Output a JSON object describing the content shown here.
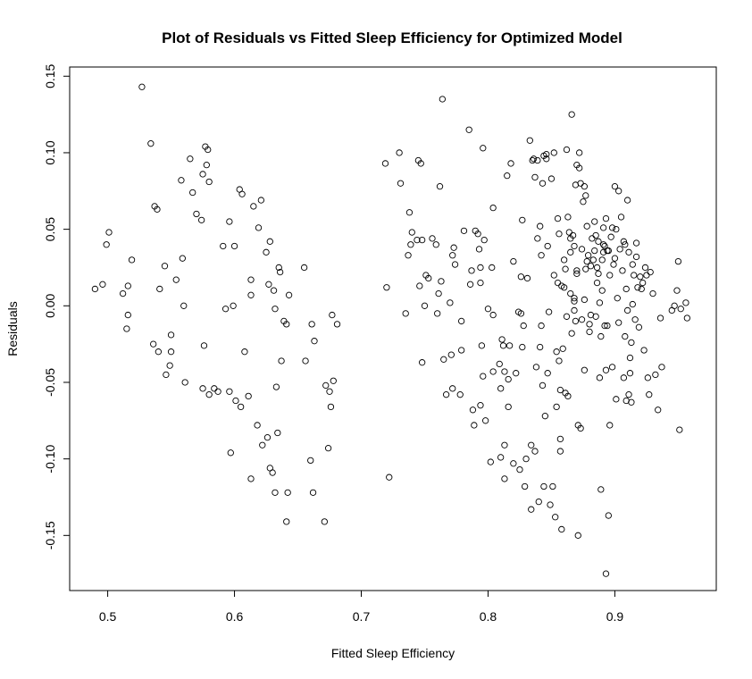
{
  "chart_data": {
    "type": "scatter",
    "title": "Plot of Residuals vs Fitted Sleep Efficiency for Optimized Model",
    "xlabel": "Fitted Sleep Efficiency",
    "ylabel": "Residuals",
    "xlim": [
      0.47,
      0.98
    ],
    "ylim": [
      -0.186,
      0.156
    ],
    "xticks": [
      0.5,
      0.6,
      0.7,
      0.8,
      0.9
    ],
    "xtick_labels": [
      "0.5",
      "0.6",
      "0.7",
      "0.8",
      "0.9"
    ],
    "yticks": [
      -0.15,
      -0.1,
      -0.05,
      0.0,
      0.05,
      0.1,
      0.15
    ],
    "ytick_labels": [
      "-0.15",
      "-0.10",
      "-0.05",
      "0.00",
      "0.05",
      "0.10",
      "0.15"
    ],
    "grid": false,
    "legend": "none",
    "points": [
      [
        0.49,
        0.011
      ],
      [
        0.496,
        0.014
      ],
      [
        0.499,
        0.04
      ],
      [
        0.501,
        0.048
      ],
      [
        0.512,
        0.008
      ],
      [
        0.515,
        -0.015
      ],
      [
        0.516,
        -0.006
      ],
      [
        0.516,
        0.013
      ],
      [
        0.519,
        0.03
      ],
      [
        0.527,
        0.143
      ],
      [
        0.534,
        0.106
      ],
      [
        0.536,
        -0.025
      ],
      [
        0.537,
        0.065
      ],
      [
        0.539,
        0.063
      ],
      [
        0.54,
        -0.03
      ],
      [
        0.541,
        0.011
      ],
      [
        0.545,
        0.026
      ],
      [
        0.546,
        -0.045
      ],
      [
        0.549,
        -0.039
      ],
      [
        0.55,
        -0.03
      ],
      [
        0.55,
        -0.019
      ],
      [
        0.554,
        0.017
      ],
      [
        0.558,
        0.082
      ],
      [
        0.559,
        0.031
      ],
      [
        0.56,
        0.0
      ],
      [
        0.561,
        -0.05
      ],
      [
        0.565,
        0.096
      ],
      [
        0.567,
        0.074
      ],
      [
        0.57,
        0.06
      ],
      [
        0.574,
        0.056
      ],
      [
        0.575,
        0.086
      ],
      [
        0.575,
        -0.054
      ],
      [
        0.576,
        -0.026
      ],
      [
        0.577,
        0.104
      ],
      [
        0.578,
        0.092
      ],
      [
        0.579,
        0.102
      ],
      [
        0.58,
        -0.058
      ],
      [
        0.58,
        0.081
      ],
      [
        0.584,
        -0.054
      ],
      [
        0.587,
        -0.056
      ],
      [
        0.591,
        0.039
      ],
      [
        0.593,
        -0.002
      ],
      [
        0.596,
        0.055
      ],
      [
        0.596,
        -0.056
      ],
      [
        0.597,
        -0.096
      ],
      [
        0.599,
        0.0
      ],
      [
        0.6,
        0.039
      ],
      [
        0.601,
        -0.062
      ],
      [
        0.604,
        0.076
      ],
      [
        0.605,
        -0.066
      ],
      [
        0.606,
        0.073
      ],
      [
        0.608,
        -0.03
      ],
      [
        0.611,
        -0.059
      ],
      [
        0.613,
        -0.113
      ],
      [
        0.613,
        0.007
      ],
      [
        0.613,
        0.017
      ],
      [
        0.615,
        0.065
      ],
      [
        0.618,
        -0.078
      ],
      [
        0.619,
        0.051
      ],
      [
        0.621,
        0.069
      ],
      [
        0.622,
        -0.091
      ],
      [
        0.625,
        0.035
      ],
      [
        0.626,
        -0.086
      ],
      [
        0.627,
        0.014
      ],
      [
        0.628,
        0.042
      ],
      [
        0.628,
        -0.106
      ],
      [
        0.63,
        -0.109
      ],
      [
        0.631,
        0.01
      ],
      [
        0.632,
        -0.002
      ],
      [
        0.632,
        -0.122
      ],
      [
        0.633,
        -0.053
      ],
      [
        0.634,
        -0.083
      ],
      [
        0.635,
        0.025
      ],
      [
        0.636,
        0.022
      ],
      [
        0.637,
        -0.036
      ],
      [
        0.639,
        -0.01
      ],
      [
        0.641,
        -0.012
      ],
      [
        0.641,
        -0.141
      ],
      [
        0.642,
        -0.122
      ],
      [
        0.643,
        0.007
      ],
      [
        0.655,
        0.025
      ],
      [
        0.656,
        -0.036
      ],
      [
        0.66,
        -0.101
      ],
      [
        0.661,
        -0.012
      ],
      [
        0.662,
        -0.122
      ],
      [
        0.663,
        -0.023
      ],
      [
        0.671,
        -0.141
      ],
      [
        0.672,
        -0.052
      ],
      [
        0.674,
        -0.093
      ],
      [
        0.675,
        -0.056
      ],
      [
        0.676,
        -0.066
      ],
      [
        0.677,
        -0.006
      ],
      [
        0.678,
        -0.049
      ],
      [
        0.681,
        -0.012
      ],
      [
        0.719,
        0.093
      ],
      [
        0.72,
        0.012
      ],
      [
        0.722,
        -0.112
      ],
      [
        0.73,
        0.1
      ],
      [
        0.731,
        0.08
      ],
      [
        0.735,
        -0.005
      ],
      [
        0.737,
        0.033
      ],
      [
        0.738,
        0.061
      ],
      [
        0.739,
        0.04
      ],
      [
        0.74,
        0.048
      ],
      [
        0.744,
        0.043
      ],
      [
        0.745,
        0.095
      ],
      [
        0.746,
        0.013
      ],
      [
        0.747,
        0.093
      ],
      [
        0.748,
        0.043
      ],
      [
        0.748,
        -0.037
      ],
      [
        0.75,
        0.0
      ],
      [
        0.751,
        0.02
      ],
      [
        0.753,
        0.018
      ],
      [
        0.756,
        0.044
      ],
      [
        0.759,
        0.04
      ],
      [
        0.76,
        -0.005
      ],
      [
        0.761,
        0.008
      ],
      [
        0.762,
        0.078
      ],
      [
        0.763,
        0.016
      ],
      [
        0.764,
        0.135
      ],
      [
        0.765,
        -0.035
      ],
      [
        0.767,
        -0.058
      ],
      [
        0.77,
        0.002
      ],
      [
        0.771,
        -0.032
      ],
      [
        0.772,
        0.033
      ],
      [
        0.772,
        -0.054
      ],
      [
        0.773,
        0.038
      ],
      [
        0.774,
        0.027
      ],
      [
        0.778,
        -0.058
      ],
      [
        0.779,
        -0.029
      ],
      [
        0.779,
        -0.01
      ],
      [
        0.781,
        0.049
      ],
      [
        0.785,
        0.115
      ],
      [
        0.786,
        0.014
      ],
      [
        0.787,
        0.023
      ],
      [
        0.788,
        -0.068
      ],
      [
        0.789,
        -0.078
      ],
      [
        0.79,
        0.049
      ],
      [
        0.792,
        0.047
      ],
      [
        0.793,
        0.037
      ],
      [
        0.794,
        0.025
      ],
      [
        0.794,
        -0.065
      ],
      [
        0.794,
        0.015
      ],
      [
        0.795,
        -0.026
      ],
      [
        0.796,
        -0.046
      ],
      [
        0.796,
        0.103
      ],
      [
        0.797,
        0.043
      ],
      [
        0.798,
        -0.075
      ],
      [
        0.8,
        -0.002
      ],
      [
        0.802,
        -0.102
      ],
      [
        0.803,
        0.025
      ],
      [
        0.804,
        -0.043
      ],
      [
        0.804,
        0.064
      ],
      [
        0.804,
        -0.006
      ],
      [
        0.809,
        -0.038
      ],
      [
        0.81,
        -0.054
      ],
      [
        0.81,
        -0.099
      ],
      [
        0.811,
        -0.022
      ],
      [
        0.812,
        -0.026
      ],
      [
        0.813,
        -0.113
      ],
      [
        0.813,
        -0.043
      ],
      [
        0.813,
        -0.091
      ],
      [
        0.815,
        0.085
      ],
      [
        0.816,
        -0.048
      ],
      [
        0.816,
        -0.066
      ],
      [
        0.817,
        -0.026
      ],
      [
        0.818,
        0.093
      ],
      [
        0.82,
        0.029
      ],
      [
        0.82,
        -0.103
      ],
      [
        0.822,
        -0.044
      ],
      [
        0.824,
        -0.004
      ],
      [
        0.825,
        -0.107
      ],
      [
        0.826,
        -0.005
      ],
      [
        0.826,
        0.019
      ],
      [
        0.827,
        0.056
      ],
      [
        0.827,
        -0.027
      ],
      [
        0.828,
        -0.013
      ],
      [
        0.829,
        -0.118
      ],
      [
        0.83,
        -0.1
      ],
      [
        0.831,
        0.018
      ],
      [
        0.833,
        0.108
      ],
      [
        0.834,
        -0.133
      ],
      [
        0.834,
        -0.091
      ],
      [
        0.835,
        0.095
      ],
      [
        0.836,
        0.096
      ],
      [
        0.837,
        -0.095
      ],
      [
        0.837,
        0.084
      ],
      [
        0.838,
        -0.04
      ],
      [
        0.839,
        0.095
      ],
      [
        0.839,
        0.044
      ],
      [
        0.84,
        -0.128
      ],
      [
        0.841,
        0.052
      ],
      [
        0.841,
        -0.027
      ],
      [
        0.842,
        0.033
      ],
      [
        0.842,
        -0.013
      ],
      [
        0.843,
        -0.052
      ],
      [
        0.843,
        0.08
      ],
      [
        0.844,
        0.098
      ],
      [
        0.844,
        -0.118
      ],
      [
        0.845,
        -0.072
      ],
      [
        0.846,
        0.099
      ],
      [
        0.846,
        0.096
      ],
      [
        0.847,
        0.039
      ],
      [
        0.847,
        -0.044
      ],
      [
        0.848,
        -0.004
      ],
      [
        0.849,
        -0.13
      ],
      [
        0.85,
        0.083
      ],
      [
        0.851,
        -0.118
      ],
      [
        0.852,
        0.02
      ],
      [
        0.852,
        0.1
      ],
      [
        0.853,
        -0.138
      ],
      [
        0.854,
        -0.03
      ],
      [
        0.854,
        -0.066
      ],
      [
        0.855,
        0.057
      ],
      [
        0.855,
        0.015
      ],
      [
        0.856,
        -0.036
      ],
      [
        0.856,
        0.047
      ],
      [
        0.857,
        -0.055
      ],
      [
        0.857,
        -0.087
      ],
      [
        0.857,
        -0.095
      ],
      [
        0.858,
        -0.146
      ],
      [
        0.858,
        0.013
      ],
      [
        0.859,
        -0.028
      ],
      [
        0.86,
        0.03
      ],
      [
        0.86,
        0.012
      ],
      [
        0.861,
        0.024
      ],
      [
        0.861,
        -0.057
      ],
      [
        0.862,
        -0.007
      ],
      [
        0.862,
        0.102
      ],
      [
        0.863,
        -0.059
      ],
      [
        0.863,
        0.058
      ],
      [
        0.864,
        0.048
      ],
      [
        0.865,
        0.035
      ],
      [
        0.865,
        0.008
      ],
      [
        0.865,
        0.044
      ],
      [
        0.866,
        0.125
      ],
      [
        0.866,
        -0.018
      ],
      [
        0.867,
        0.046
      ],
      [
        0.868,
        -0.003
      ],
      [
        0.868,
        0.039
      ],
      [
        0.868,
        0.003
      ],
      [
        0.868,
        0.005
      ],
      [
        0.869,
        -0.01
      ],
      [
        0.869,
        0.079
      ],
      [
        0.87,
        0.092
      ],
      [
        0.87,
        0.023
      ],
      [
        0.87,
        0.021
      ],
      [
        0.871,
        -0.078
      ],
      [
        0.871,
        -0.15
      ],
      [
        0.872,
        0.09
      ],
      [
        0.872,
        0.1
      ],
      [
        0.873,
        -0.08
      ],
      [
        0.873,
        0.08
      ],
      [
        0.874,
        0.037
      ],
      [
        0.874,
        -0.009
      ],
      [
        0.875,
        0.068
      ],
      [
        0.876,
        0.004
      ],
      [
        0.876,
        0.078
      ],
      [
        0.876,
        -0.042
      ],
      [
        0.877,
        0.024
      ],
      [
        0.877,
        0.072
      ],
      [
        0.878,
        0.029
      ],
      [
        0.878,
        0.052
      ],
      [
        0.879,
        0.033
      ],
      [
        0.88,
        -0.017
      ],
      [
        0.88,
        -0.012
      ],
      [
        0.881,
        0.026
      ],
      [
        0.881,
        -0.006
      ],
      [
        0.882,
        0.044
      ],
      [
        0.883,
        0.03
      ],
      [
        0.884,
        0.036
      ],
      [
        0.884,
        0.055
      ],
      [
        0.885,
        0.046
      ],
      [
        0.885,
        -0.007
      ],
      [
        0.886,
        0.015
      ],
      [
        0.886,
        0.025
      ],
      [
        0.887,
        0.042
      ],
      [
        0.887,
        0.021
      ],
      [
        0.888,
        -0.047
      ],
      [
        0.888,
        0.002
      ],
      [
        0.889,
        -0.12
      ],
      [
        0.889,
        -0.02
      ],
      [
        0.89,
        0.01
      ],
      [
        0.89,
        0.03
      ],
      [
        0.891,
        0.035
      ],
      [
        0.891,
        0.051
      ],
      [
        0.891,
        0.04
      ],
      [
        0.892,
        -0.013
      ],
      [
        0.892,
        0.039
      ],
      [
        0.893,
        0.057
      ],
      [
        0.893,
        -0.042
      ],
      [
        0.893,
        -0.175
      ],
      [
        0.894,
        0.036
      ],
      [
        0.894,
        -0.013
      ],
      [
        0.895,
        0.036
      ],
      [
        0.895,
        -0.137
      ],
      [
        0.896,
        0.02
      ],
      [
        0.896,
        -0.078
      ],
      [
        0.897,
        0.045
      ],
      [
        0.898,
        0.051
      ],
      [
        0.898,
        -0.04
      ],
      [
        0.899,
        0.027
      ],
      [
        0.9,
        0.031
      ],
      [
        0.9,
        0.078
      ],
      [
        0.901,
        0.05
      ],
      [
        0.901,
        -0.061
      ],
      [
        0.902,
        0.005
      ],
      [
        0.903,
        -0.011
      ],
      [
        0.903,
        0.075
      ],
      [
        0.904,
        0.037
      ],
      [
        0.905,
        0.058
      ],
      [
        0.906,
        0.023
      ],
      [
        0.907,
        0.042
      ],
      [
        0.907,
        -0.047
      ],
      [
        0.908,
        -0.02
      ],
      [
        0.908,
        0.04
      ],
      [
        0.909,
        0.011
      ],
      [
        0.909,
        -0.062
      ],
      [
        0.91,
        0.069
      ],
      [
        0.91,
        -0.003
      ],
      [
        0.911,
        -0.058
      ],
      [
        0.911,
        0.035
      ],
      [
        0.912,
        -0.044
      ],
      [
        0.912,
        -0.034
      ],
      [
        0.913,
        -0.024
      ],
      [
        0.913,
        -0.063
      ],
      [
        0.914,
        0.027
      ],
      [
        0.914,
        0.001
      ],
      [
        0.915,
        0.02
      ],
      [
        0.916,
        -0.009
      ],
      [
        0.917,
        0.032
      ],
      [
        0.917,
        0.041
      ],
      [
        0.918,
        0.012
      ],
      [
        0.919,
        -0.014
      ],
      [
        0.92,
        0.019
      ],
      [
        0.921,
        0.011
      ],
      [
        0.922,
        0.015
      ],
      [
        0.923,
        -0.029
      ],
      [
        0.924,
        0.025
      ],
      [
        0.925,
        0.02
      ],
      [
        0.926,
        -0.047
      ],
      [
        0.927,
        -0.058
      ],
      [
        0.928,
        0.022
      ],
      [
        0.93,
        0.008
      ],
      [
        0.932,
        -0.045
      ],
      [
        0.934,
        -0.068
      ],
      [
        0.936,
        -0.008
      ],
      [
        0.937,
        -0.04
      ],
      [
        0.945,
        -0.003
      ],
      [
        0.947,
        0.0
      ],
      [
        0.949,
        0.01
      ],
      [
        0.95,
        0.029
      ],
      [
        0.951,
        -0.081
      ],
      [
        0.952,
        -0.002
      ],
      [
        0.956,
        0.002
      ],
      [
        0.957,
        -0.008
      ]
    ]
  }
}
